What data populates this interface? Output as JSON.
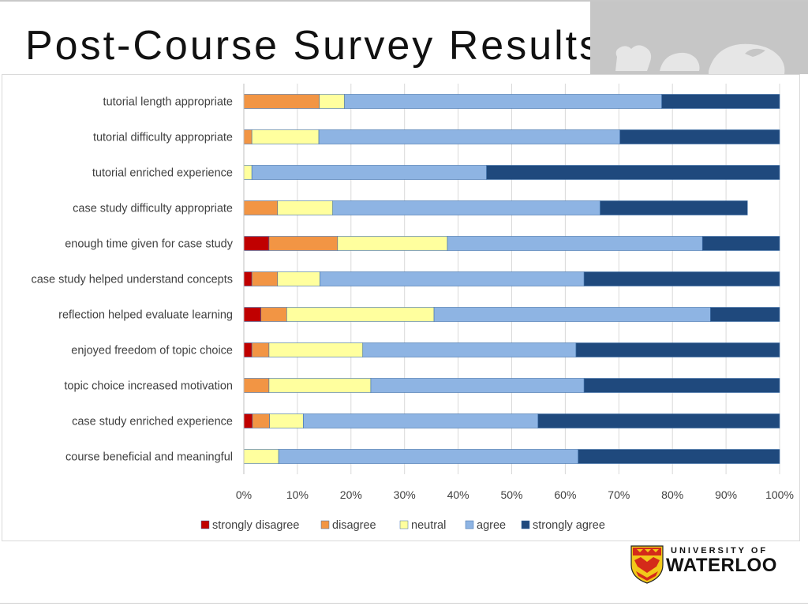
{
  "slide": {
    "title": "Post-Course Survey Results"
  },
  "logo": {
    "line1": "UNIVERSITY OF",
    "line2": "WATERLOO"
  },
  "chart_data": {
    "type": "bar",
    "orientation": "horizontal",
    "stacked": "100%",
    "categories": [
      "tutorial length appropriate",
      "tutorial difficulty appropriate",
      "tutorial enriched experience",
      "case study difficulty appropriate",
      "enough time given for case study",
      "case study helped understand concepts",
      "reflection helped evaluate learning",
      "enjoyed freedom of topic choice",
      "topic choice increased motivation",
      "case study enriched experience",
      "course beneficial and meaningful"
    ],
    "series": [
      {
        "name": "strongly disagree",
        "color": "#c00000",
        "values": [
          0,
          0,
          0,
          0,
          4.7,
          1.5,
          3.2,
          1.5,
          0,
          1.6,
          0
        ]
      },
      {
        "name": "disagree",
        "color": "#f29544",
        "values": [
          14.1,
          1.5,
          0,
          6.3,
          12.8,
          4.8,
          4.8,
          3.2,
          4.7,
          3.2,
          0
        ]
      },
      {
        "name": "neutral",
        "color": "#ffff9e",
        "values": [
          4.7,
          12.5,
          1.5,
          10.3,
          20.5,
          7.9,
          27.5,
          17.5,
          19.0,
          6.3,
          6.5
        ]
      },
      {
        "name": "agree",
        "color": "#8eb4e3",
        "values": [
          59.2,
          56.2,
          43.8,
          49.9,
          47.6,
          49.3,
          51.6,
          39.8,
          39.8,
          43.8,
          55.9
        ]
      },
      {
        "name": "strongly agree",
        "color": "#1f497d",
        "values": [
          22.0,
          29.8,
          54.7,
          27.5,
          14.4,
          36.5,
          12.9,
          38.0,
          36.5,
          45.1,
          37.6
        ]
      }
    ],
    "xlim": [
      0,
      100
    ],
    "x_ticks": [
      "0%",
      "10%",
      "20%",
      "30%",
      "40%",
      "50%",
      "60%",
      "70%",
      "80%",
      "90%",
      "100%"
    ],
    "grid": true,
    "legend_position": "bottom"
  }
}
